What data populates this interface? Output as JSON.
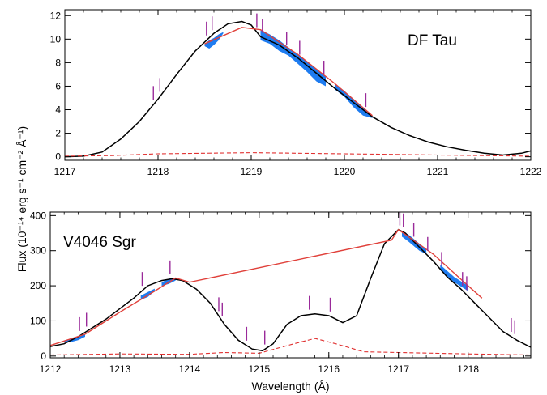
{
  "ylabel": "Flux (10⁻¹⁴ erg s⁻¹ cm⁻² Å⁻¹)",
  "colors": {
    "observed": "#000000",
    "fit": "#e0403a",
    "residual": "#e03030",
    "absorption_fill": "#1e7cf0",
    "marker": "#9a2a9a"
  },
  "chart_data": [
    {
      "type": "line",
      "title": "DF Tau",
      "xlabel": "",
      "ylabel": "Flux (10⁻¹⁴ erg s⁻¹ cm⁻² Å⁻¹)",
      "xlim": [
        1217,
        1222
      ],
      "ylim": [
        -0.3,
        12.5
      ],
      "xticks": [
        1217,
        1218,
        1219,
        1220,
        1221,
        1222
      ],
      "yticks": [
        0,
        2,
        4,
        6,
        8,
        10,
        12
      ],
      "series": [
        {
          "name": "",
          "role": "observed",
          "x": [
            1217.0,
            1217.2,
            1217.4,
            1217.6,
            1217.8,
            1218.0,
            1218.2,
            1218.4,
            1218.6,
            1218.75,
            1218.9,
            1219.0,
            1219.1,
            1219.3,
            1219.5,
            1219.7,
            1219.9,
            1220.1,
            1220.3,
            1220.5,
            1220.7,
            1220.9,
            1221.1,
            1221.3,
            1221.5,
            1221.7,
            1221.9,
            1222.0
          ],
          "y": [
            0,
            0.05,
            0.4,
            1.5,
            3.0,
            4.9,
            7.0,
            9.0,
            10.5,
            11.3,
            11.5,
            11.2,
            10.2,
            9.5,
            8.4,
            7.1,
            5.8,
            4.6,
            3.4,
            2.5,
            1.8,
            1.25,
            0.85,
            0.55,
            0.3,
            0.15,
            0.3,
            0.5
          ]
        },
        {
          "name": "",
          "role": "fit",
          "x": [
            1218.5,
            1218.9,
            1219.1,
            1219.5,
            1219.9,
            1220.3
          ],
          "y": [
            9.6,
            11.0,
            10.8,
            8.7,
            6.2,
            3.5
          ]
        },
        {
          "name": "",
          "role": "residual",
          "x": [
            1217.0,
            1217.5,
            1218.0,
            1218.5,
            1219.0,
            1219.5,
            1220.0,
            1220.5,
            1221.0,
            1221.5,
            1222.0
          ],
          "y": [
            0.05,
            0.1,
            0.25,
            0.3,
            0.35,
            0.3,
            0.25,
            0.2,
            0.15,
            0.1,
            0.05
          ]
        }
      ],
      "absorption_regions": [
        {
          "x": [
            1218.5,
            1218.55,
            1218.6,
            1218.65,
            1218.7
          ],
          "top": [
            9.6,
            9.9,
            10.1,
            10.4,
            10.6
          ],
          "bottom": [
            9.4,
            9.2,
            9.5,
            9.9,
            10.5
          ]
        },
        {
          "x": [
            1219.1,
            1219.2,
            1219.3,
            1219.4,
            1219.5,
            1219.6,
            1219.7,
            1219.8
          ],
          "top": [
            10.8,
            10.4,
            9.9,
            9.3,
            8.7,
            8.1,
            7.4,
            6.8
          ],
          "bottom": [
            9.9,
            9.6,
            9.0,
            8.6,
            7.9,
            7.2,
            6.4,
            6.0
          ]
        },
        {
          "x": [
            1219.9,
            1220.0,
            1220.1,
            1220.2,
            1220.3
          ],
          "top": [
            6.2,
            5.6,
            4.9,
            4.2,
            3.5
          ],
          "bottom": [
            5.7,
            5.1,
            4.2,
            3.5,
            3.3
          ]
        }
      ],
      "markers": [
        1217.95,
        1218.02,
        1218.52,
        1218.58,
        1219.06,
        1219.12,
        1219.38,
        1219.52,
        1219.78,
        1220.23
      ]
    },
    {
      "type": "line",
      "title": "V4046 Sgr",
      "xlabel": "Wavelength (Å)",
      "ylabel": "Flux (10⁻¹⁴ erg s⁻¹ cm⁻² Å⁻¹)",
      "xlim": [
        1212,
        1218.9
      ],
      "ylim": [
        -5,
        410
      ],
      "xticks": [
        1212,
        1213,
        1214,
        1215,
        1216,
        1217,
        1218
      ],
      "yticks": [
        0,
        100,
        200,
        300,
        400
      ],
      "series": [
        {
          "name": "",
          "role": "observed",
          "x": [
            1212.0,
            1212.2,
            1212.4,
            1212.6,
            1212.8,
            1213.0,
            1213.2,
            1213.4,
            1213.6,
            1213.75,
            1213.9,
            1214.1,
            1214.3,
            1214.5,
            1214.7,
            1214.9,
            1215.05,
            1215.2,
            1215.4,
            1215.6,
            1215.8,
            1216.0,
            1216.2,
            1216.4,
            1216.6,
            1216.8,
            1217.0,
            1217.1,
            1217.3,
            1217.5,
            1217.7,
            1217.9,
            1218.1,
            1218.3,
            1218.5,
            1218.7,
            1218.9
          ],
          "y": [
            27,
            35,
            55,
            80,
            105,
            135,
            165,
            200,
            215,
            220,
            215,
            190,
            150,
            90,
            45,
            20,
            15,
            35,
            90,
            115,
            120,
            115,
            95,
            115,
            220,
            320,
            360,
            350,
            310,
            270,
            225,
            190,
            150,
            110,
            70,
            45,
            25
          ]
        },
        {
          "name": "",
          "role": "fit",
          "x": [
            1212.0,
            1212.5,
            1213.0,
            1213.5,
            1213.8,
            1214.0,
            1216.9,
            1217.0,
            1217.5,
            1218.0,
            1218.2
          ],
          "y": [
            30,
            62,
            125,
            185,
            222,
            210,
            330,
            360,
            290,
            200,
            165
          ]
        },
        {
          "name": "",
          "role": "residual",
          "x": [
            1212.0,
            1213.0,
            1214.0,
            1214.5,
            1215.0,
            1215.5,
            1215.8,
            1216.1,
            1216.5,
            1217.0,
            1218.0,
            1218.9
          ],
          "y": [
            3,
            6,
            5,
            10,
            8,
            35,
            50,
            35,
            12,
            10,
            6,
            3
          ]
        }
      ],
      "absorption_regions": [
        {
          "x": [
            1212.2,
            1212.3,
            1212.4,
            1212.5
          ],
          "top": [
            42,
            50,
            57,
            62
          ],
          "bottom": [
            38,
            40,
            45,
            55
          ]
        },
        {
          "x": [
            1213.3,
            1213.4,
            1213.5
          ],
          "top": [
            172,
            182,
            192
          ],
          "bottom": [
            160,
            168,
            185
          ]
        },
        {
          "x": [
            1213.6,
            1213.7,
            1213.8
          ],
          "top": [
            210,
            220,
            222
          ],
          "bottom": [
            200,
            205,
            215
          ]
        },
        {
          "x": [
            1217.05,
            1217.15,
            1217.3,
            1217.4
          ],
          "top": [
            355,
            345,
            320,
            305
          ],
          "bottom": [
            340,
            325,
            300,
            290
          ]
        },
        {
          "x": [
            1217.6,
            1217.8,
            1218.0
          ],
          "top": [
            260,
            225,
            200
          ],
          "bottom": [
            245,
            210,
            185
          ]
        }
      ],
      "markers": [
        1212.42,
        1212.52,
        1213.32,
        1213.72,
        1214.42,
        1214.47,
        1214.82,
        1215.08,
        1215.72,
        1216.02,
        1217.02,
        1217.07,
        1217.22,
        1217.42,
        1217.62,
        1217.92,
        1217.98,
        1218.62,
        1218.67
      ]
    }
  ]
}
